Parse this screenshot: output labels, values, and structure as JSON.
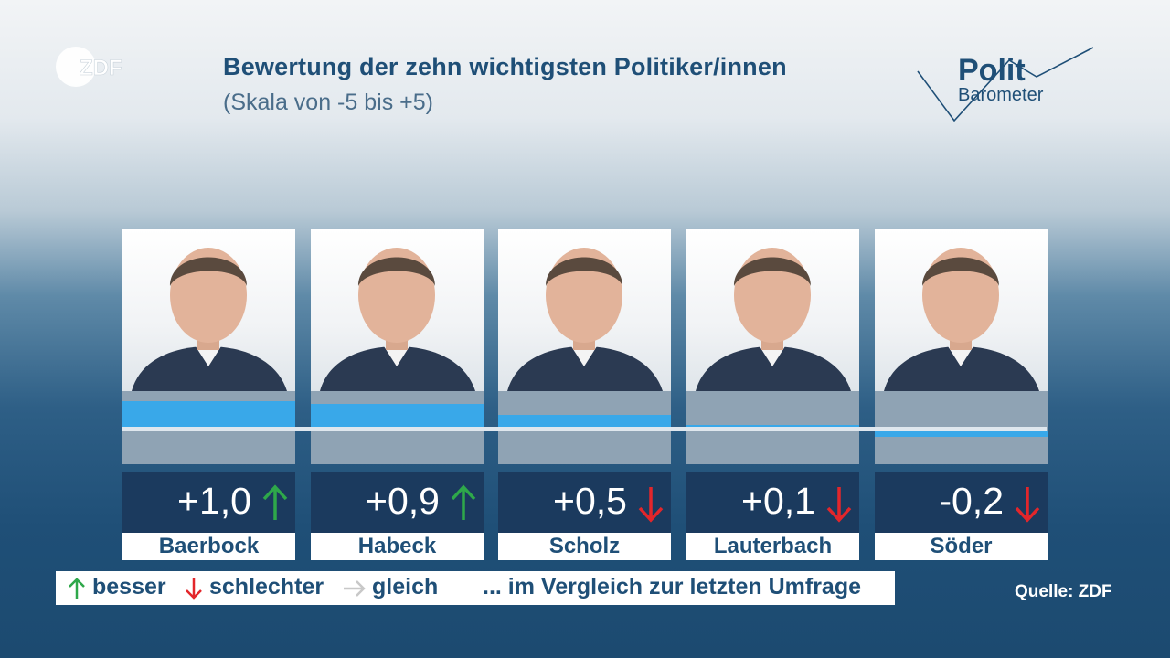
{
  "header": {
    "title": "Bewertung der zehn wichtigsten Politiker/innen",
    "subtitle": "(Skala von -5 bis +5)"
  },
  "branding": {
    "broadcaster_logo": "ZDF",
    "politbarometer_line1": "Polit",
    "politbarometer_line2": "Barometer"
  },
  "chart_data": {
    "type": "bar",
    "ylim": [
      -5,
      5
    ],
    "categories": [
      "Baerbock",
      "Habeck",
      "Scholz",
      "Lauterbach",
      "Söder"
    ],
    "values": [
      1.0,
      0.9,
      0.5,
      0.1,
      -0.2
    ],
    "value_labels": [
      "+1,0",
      "+0,9",
      "+0,5",
      "+0,1",
      "-0,2"
    ],
    "trend": [
      "up",
      "up",
      "down",
      "down",
      "down"
    ]
  },
  "legend": {
    "better": "besser",
    "worse": "schlechter",
    "same": "gleich",
    "note": "... im Vergleich zur letzten Umfrage"
  },
  "source": "Quelle: ZDF",
  "colors": {
    "bar": "#39a8e9",
    "up": "#2ea84a",
    "down": "#e3262b",
    "same": "#c8c8c8",
    "text": "#1f4f77"
  }
}
